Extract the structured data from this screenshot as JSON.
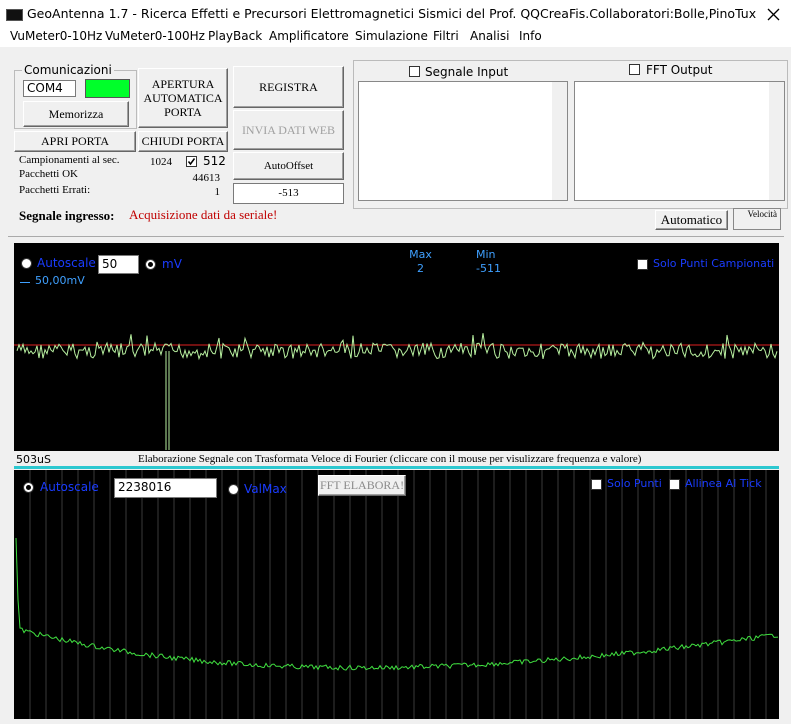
{
  "window": {
    "title": "GeoAntenna 1.7 - Ricerca Effetti e Precursori Elettromagnetici Sismici del Prof. QQCreaFis.Collaboratori:Bolle,PinoTux"
  },
  "menu": [
    "VuMeter0-10Hz",
    "VuMeter0-100Hz",
    "PlayBack",
    "Amplificatore",
    "Simulazione",
    "Filtri",
    "Analisi",
    "Info"
  ],
  "comunicazioni": {
    "legend": "Comunicazioni",
    "port": "COM4",
    "memorizza": "Memorizza"
  },
  "apertura": [
    "APERTURA",
    "AUTOMATICA",
    "PORTA"
  ],
  "apri": "APRI PORTA",
  "chiudi": "CHIUDI PORTA",
  "stats": {
    "campionamenti_label": "Campionamenti al sec.",
    "campionamenti": 1024,
    "buffer": 512,
    "ok_label": "Pacchetti OK",
    "ok": 44613,
    "errati_label": "Pacchetti Errati:",
    "errati": 1
  },
  "registra": "REGISTRA",
  "invia": "INVIA DATI WEB",
  "autooffset": "AutoOffset",
  "offset": -513,
  "segnale_input": "Segnale Input",
  "fft_output": "FFT Output",
  "ingresso": {
    "label": "Segnale ingresso:",
    "status": "Acquisizione dati da seriale!",
    "automatico": "Automatico",
    "velocita": "Velocità"
  },
  "scope": {
    "autoscale": "Autoscale",
    "scale": 50,
    "unit": "mV",
    "max_label": "Max",
    "max": 2,
    "min_label": "Min",
    "min": -511,
    "solo_punti": "Solo Punti Campionati",
    "legend": "50,00mV"
  },
  "status": {
    "time": "503uS",
    "info": "Elaborazione Segnale con Trasformata Veloce di Fourier (cliccare con il mouse per visulizzare frequenza e valore)"
  },
  "fft": {
    "autoscale": "Autoscale",
    "value": 2238016,
    "valmax": "ValMax",
    "elabora": "FFT ELABORA!",
    "solo_punti": "Solo Punti",
    "allinea": "Allinea Al Tick"
  }
}
